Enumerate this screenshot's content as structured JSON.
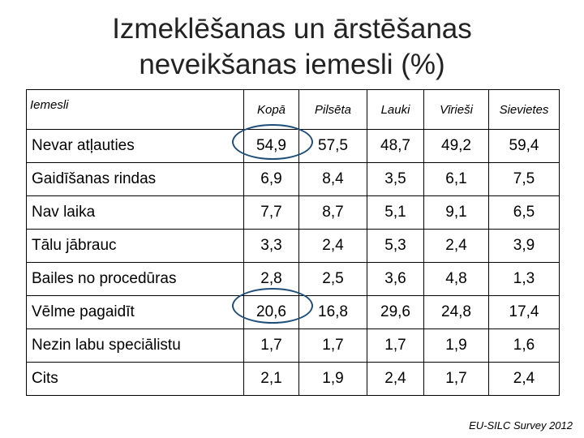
{
  "title": {
    "line1": "Izmeklēšanas un ārstēšanas",
    "line2": "neveikšanas iemesli (%)"
  },
  "table": {
    "headers": [
      "Iemesli",
      "Kopā",
      "Pilsēta",
      "Lauki",
      "Vīrieši",
      "Sievietes"
    ],
    "rows": [
      [
        "Nevar atļauties",
        "54,9",
        "57,5",
        "48,7",
        "49,2",
        "59,4"
      ],
      [
        "Gaidīšanas rindas",
        "6,9",
        "8,4",
        "3,5",
        "6,1",
        "7,5"
      ],
      [
        "Nav laika",
        "7,7",
        "8,7",
        "5,1",
        "9,1",
        "6,5"
      ],
      [
        "Tālu jābrauc",
        "3,3",
        "2,4",
        "5,3",
        "2,4",
        "3,9"
      ],
      [
        "Bailes no procedūras",
        "2,8",
        "2,5",
        "3,6",
        "4,8",
        "1,3"
      ],
      [
        "Vēlme pagaidīt",
        "20,6",
        "16,8",
        "29,6",
        "24,8",
        "17,4"
      ],
      [
        "Nezin labu speciālistu",
        "1,7",
        "1,7",
        "1,7",
        "1,9",
        "1,6"
      ],
      [
        "Cits",
        "2,1",
        "1,9",
        "2,4",
        "1,7",
        "2,4"
      ]
    ]
  },
  "highlight_color": "#1f4e79",
  "source": "EU-SILC Survey 2012"
}
